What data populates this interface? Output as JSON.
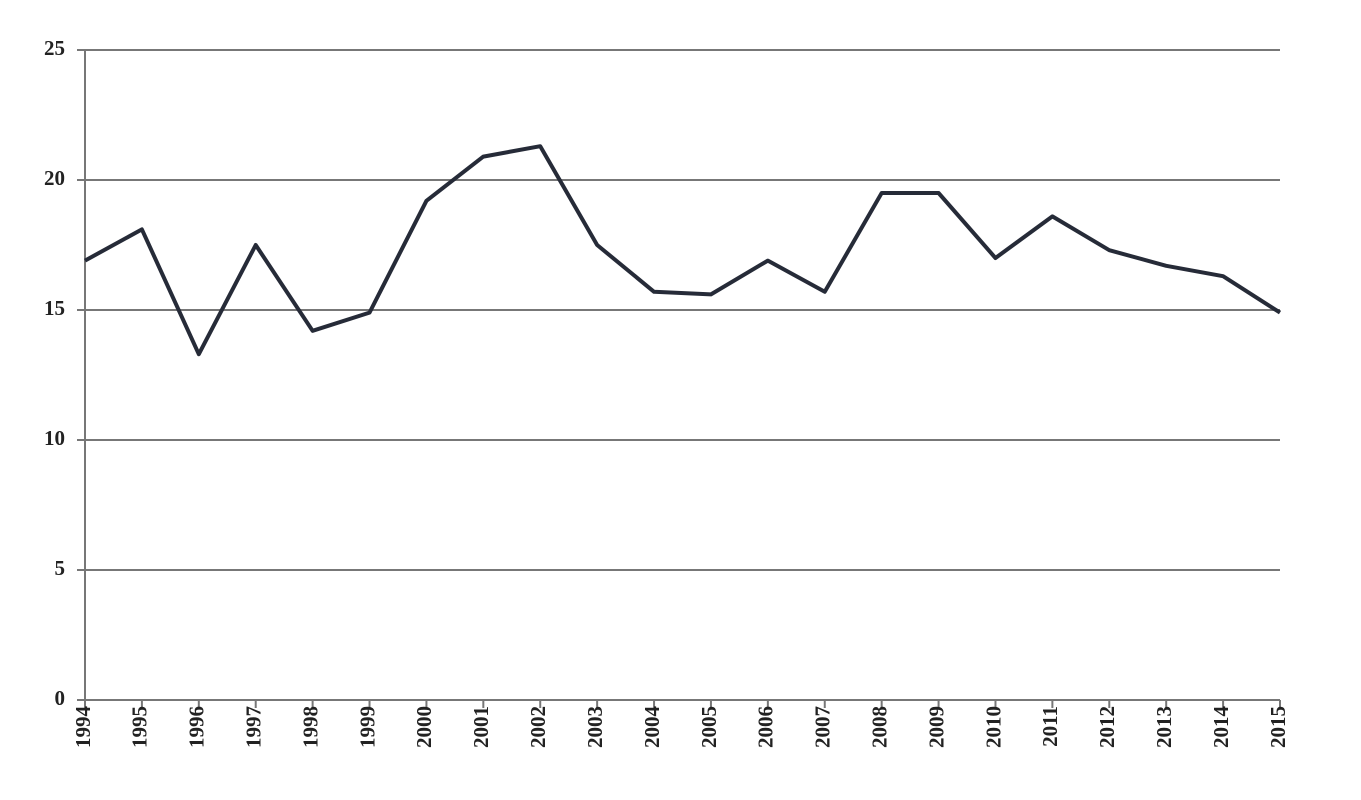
{
  "chart_data": {
    "type": "line",
    "x": [
      1994,
      1995,
      1996,
      1997,
      1998,
      1999,
      2000,
      2001,
      2002,
      2003,
      2004,
      2005,
      2006,
      2007,
      2008,
      2009,
      2010,
      2011,
      2012,
      2013,
      2014,
      2015
    ],
    "series": [
      {
        "color": "#262b38",
        "values": [
          16.9,
          18.1,
          13.3,
          17.5,
          14.2,
          14.9,
          19.2,
          20.9,
          21.3,
          17.5,
          15.7,
          15.6,
          16.9,
          15.7,
          19.5,
          19.5,
          17.0,
          18.6,
          17.3,
          16.7,
          16.3,
          14.9
        ]
      }
    ],
    "xlim": [
      1994,
      2015
    ],
    "ylim": [
      0,
      25
    ],
    "yticks": [
      0,
      5,
      10,
      15,
      20,
      25
    ],
    "grid": true
  }
}
